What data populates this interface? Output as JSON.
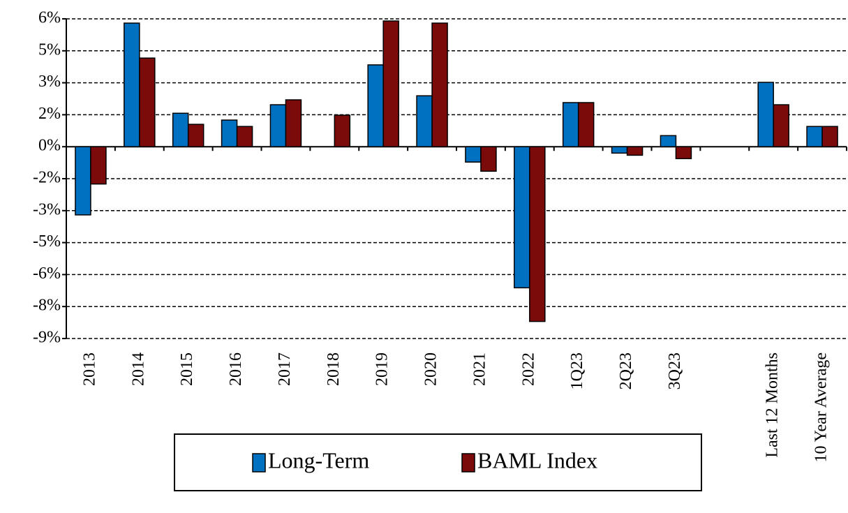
{
  "chart_data": {
    "type": "bar",
    "categories": [
      "2013",
      "2014",
      "2015",
      "2016",
      "2017",
      "2018",
      "2019",
      "2020",
      "2021",
      "2022",
      "1Q23",
      "2Q23",
      "3Q23",
      null,
      "Last 12 Months",
      "10 Year Average"
    ],
    "series": [
      {
        "name": "Long-Term",
        "color": "#0070c0",
        "values": [
          -3.2,
          5.8,
          1.57,
          1.25,
          1.97,
          null,
          3.84,
          2.39,
          -0.72,
          -6.62,
          2.07,
          -0.3,
          0.52,
          null,
          3.02,
          0.95
        ]
      },
      {
        "name": "BAML Index",
        "color": "#7b0a0a",
        "values": [
          -1.75,
          4.16,
          1.05,
          0.95,
          2.2,
          1.48,
          5.9,
          5.8,
          -1.15,
          -8.2,
          2.07,
          -0.4,
          -0.56,
          null,
          1.97,
          0.95
        ]
      }
    ],
    "ylim": [
      -9,
      6
    ],
    "yticks": [
      {
        "value": 6,
        "label": "6%"
      },
      {
        "value": 4.5,
        "label": "5%"
      },
      {
        "value": 3,
        "label": "3%"
      },
      {
        "value": 1.5,
        "label": "2%"
      },
      {
        "value": 0,
        "label": "0%"
      },
      {
        "value": -1.5,
        "label": "-2%"
      },
      {
        "value": -3,
        "label": "-3%"
      },
      {
        "value": -4.5,
        "label": "-5%"
      },
      {
        "value": -6,
        "label": "-6%"
      },
      {
        "value": -7.5,
        "label": "-8%"
      },
      {
        "value": -9,
        "label": "-9%"
      }
    ],
    "grid": true
  }
}
